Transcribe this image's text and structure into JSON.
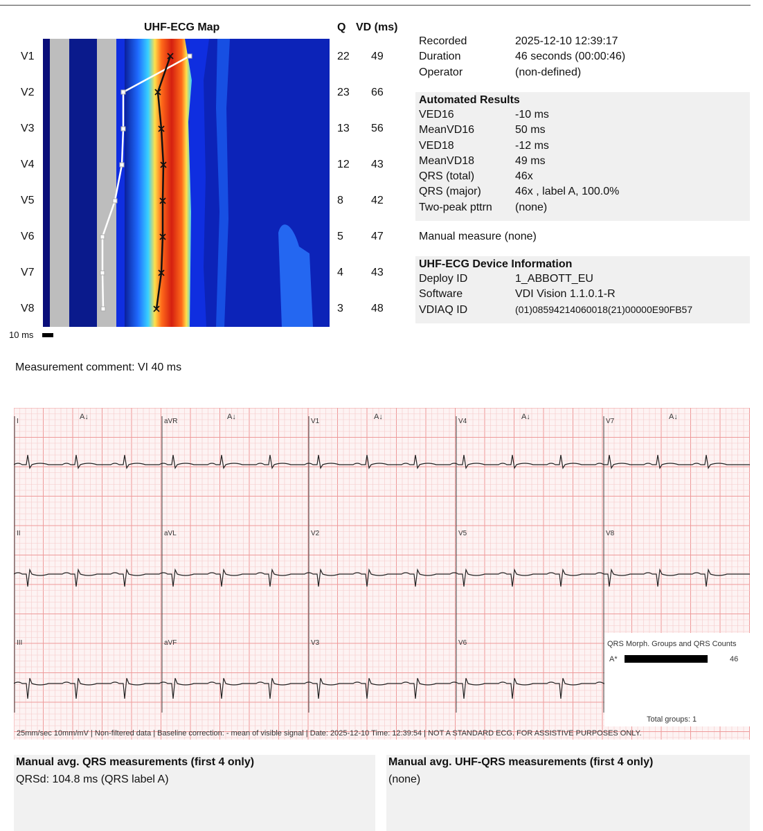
{
  "map": {
    "title": "UHF-ECG Map",
    "q_header": "Q",
    "vd_header": "VD (ms)",
    "leads": [
      "V1",
      "V2",
      "V3",
      "V4",
      "V5",
      "V6",
      "V7",
      "V8"
    ],
    "q_values": [
      "22",
      "23",
      "13",
      "12",
      "8",
      "5",
      "4",
      "3"
    ],
    "vd_values": [
      "49",
      "66",
      "56",
      "43",
      "42",
      "47",
      "43",
      "48"
    ],
    "scale_label": "10 ms"
  },
  "recording": {
    "recorded_label": "Recorded",
    "recorded_value": "2025-12-10 12:39:17",
    "duration_label": "Duration",
    "duration_value": "46 seconds (00:00:46)",
    "operator_label": "Operator",
    "operator_value": "(non-defined)"
  },
  "automated": {
    "title": "Automated Results",
    "rows": [
      {
        "k": "VED16",
        "v": "-10 ms"
      },
      {
        "k": "MeanVD16",
        "v": "50 ms"
      },
      {
        "k": "VED18",
        "v": "-12 ms"
      },
      {
        "k": "MeanVD18",
        "v": "49 ms"
      },
      {
        "k": "QRS  (total)",
        "v": "46x"
      },
      {
        "k": "QRS  (major)",
        "v": "46x , label A, 100.0%"
      },
      {
        "k": "Two-peak  pttrn",
        "v": "(none)"
      }
    ]
  },
  "manual_measure": "Manual  measure (none)",
  "device": {
    "title": "UHF-ECG Device Information",
    "rows": [
      {
        "k": "Deploy ID",
        "v": "1_ABBOTT_EU"
      },
      {
        "k": "Software",
        "v": "VDI Vision 1.1.0.1-R"
      },
      {
        "k": "VDIAQ ID",
        "v": "(01)08594214060018(21)00000E90FB57"
      }
    ]
  },
  "comment": "Measurement comment: VI 40 ms",
  "ecg": {
    "columns": [
      {
        "leads": [
          "I",
          "II",
          "III"
        ]
      },
      {
        "leads": [
          "aVR",
          "aVL",
          "aVF"
        ]
      },
      {
        "leads": [
          "V1",
          "V2",
          "V3"
        ]
      },
      {
        "leads": [
          "V4",
          "V5",
          "V6"
        ]
      },
      {
        "leads": [
          "V7",
          "V8",
          ""
        ]
      }
    ],
    "marker": "A↓",
    "footer": "25mm/sec  10mm/mV | Non-filtered data | Baseline correction: - mean of visible signal | Date: 2025-12-10 Time: 12:39:54 | NOT A STANDARD ECG. FOR ASSISTIVE PURPOSES ONLY.",
    "morph": {
      "title": "QRS Morph. Groups and QRS Counts",
      "label": "A*",
      "count": "46",
      "total": "Total groups: 1"
    }
  },
  "manual_qrs": {
    "title": "Manual avg. QRS measurements (first 4 only)",
    "value": "QRSd: 104.8 ms (QRS label A)"
  },
  "manual_uhf": {
    "title": "Manual avg. UHF-QRS measurements (first 4 only)",
    "value": "(none)"
  },
  "colors": {
    "grid_minor": "#f6caca",
    "grid_major": "#ee9a9a",
    "grid_line": "#e04848",
    "trace": "#222222"
  }
}
